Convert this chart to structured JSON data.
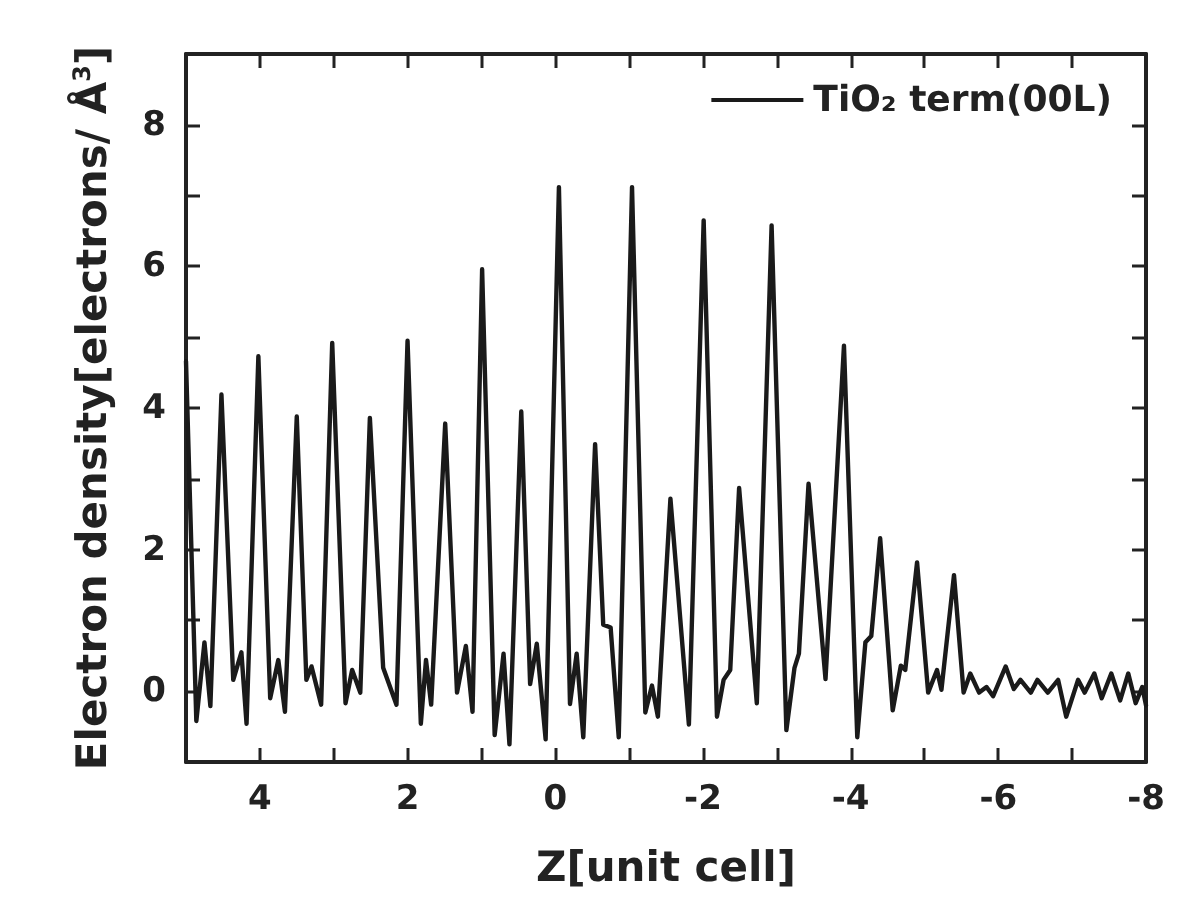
{
  "chart_data": {
    "type": "line",
    "xlabel": "Z[unit cell]",
    "ylabel": "Electron density[electrons/ Å$^{3}$]",
    "legend": "top right",
    "grid": false,
    "marker": "none",
    "line_style": "solid",
    "xlim": [
      5,
      -8
    ],
    "xticks": [
      {
        "value": 5,
        "label": null
      },
      4,
      {
        "value": 3,
        "label": null
      },
      2,
      {
        "value": 1,
        "label": null
      },
      0,
      {
        "value": -1,
        "label": null
      },
      -2,
      {
        "value": -3,
        "label": null
      },
      -4,
      {
        "value": -5,
        "label": null
      },
      -6,
      {
        "value": -7,
        "label": null
      },
      -8
    ],
    "ylim": [
      -1,
      9
    ],
    "yticks": [
      0,
      {
        "value": 1,
        "label": null
      },
      2,
      {
        "value": 3,
        "label": null
      },
      4,
      {
        "value": 5,
        "label": null
      },
      6,
      {
        "value": 7,
        "label": null
      },
      8
    ],
    "series": [
      {
        "name": "TiO₂ term(00L)",
        "color": "#1a1a1a",
        "x": [
          5.0,
          4.86,
          4.75,
          4.67,
          4.52,
          4.36,
          4.25,
          4.18,
          4.02,
          3.86,
          3.75,
          3.66,
          3.5,
          3.37,
          3.3,
          3.17,
          3.02,
          2.84,
          2.75,
          2.64,
          2.51,
          2.33,
          2.15,
          2.0,
          1.82,
          1.75,
          1.68,
          1.49,
          1.33,
          1.21,
          1.12,
          0.99,
          0.82,
          0.7,
          0.62,
          0.46,
          0.34,
          0.25,
          0.13,
          -0.05,
          -0.2,
          -0.29,
          -0.38,
          -0.54,
          -0.65,
          -0.75,
          -0.86,
          -1.04,
          -1.22,
          -1.31,
          -1.39,
          -1.56,
          -1.81,
          -2.01,
          -2.19,
          -2.28,
          -2.37,
          -2.49,
          -2.73,
          -2.93,
          -3.13,
          -3.24,
          -3.3,
          -3.43,
          -3.66,
          -3.91,
          -4.09,
          -4.2,
          -4.28,
          -4.4,
          -4.57,
          -4.68,
          -4.74,
          -4.9,
          -5.05,
          -5.17,
          -5.23,
          -5.4,
          -5.53,
          -5.62,
          -5.74,
          -5.84,
          -5.93,
          -6.1,
          -6.21,
          -6.3,
          -6.44,
          -6.53,
          -6.67,
          -6.81,
          -6.92,
          -7.08,
          -7.17,
          -7.3,
          -7.4,
          -7.53,
          -7.65,
          -7.76,
          -7.86,
          -7.95,
          -8.0
        ],
        "values": [
          4.66,
          -0.42,
          0.69,
          -0.21,
          4.19,
          0.16,
          0.55,
          -0.46,
          4.73,
          -0.1,
          0.44,
          -0.29,
          3.88,
          0.16,
          0.35,
          -0.19,
          4.92,
          -0.17,
          0.3,
          -0.02,
          3.86,
          0.33,
          -0.19,
          4.95,
          -0.46,
          0.44,
          -0.19,
          3.78,
          -0.02,
          0.64,
          -0.29,
          5.96,
          -0.62,
          0.53,
          -0.75,
          3.95,
          0.1,
          0.67,
          -0.68,
          7.12,
          -0.18,
          0.53,
          -0.65,
          3.49,
          0.94,
          0.9,
          -0.65,
          7.12,
          -0.3,
          0.08,
          -0.36,
          2.72,
          -0.47,
          6.65,
          -0.36,
          0.16,
          0.3,
          2.87,
          -0.17,
          6.58,
          -0.55,
          0.33,
          0.53,
          2.93,
          0.17,
          4.88,
          -0.65,
          0.69,
          0.78,
          2.16,
          -0.27,
          0.36,
          0.3,
          1.82,
          -0.02,
          0.3,
          0.02,
          1.64,
          -0.02,
          0.25,
          -0.02,
          0.06,
          -0.07,
          0.35,
          0.03,
          0.16,
          -0.02,
          0.16,
          -0.02,
          0.16,
          -0.36,
          0.16,
          -0.02,
          0.25,
          -0.1,
          0.25,
          -0.13,
          0.25,
          -0.17,
          0.06,
          -0.2
        ]
      }
    ]
  }
}
